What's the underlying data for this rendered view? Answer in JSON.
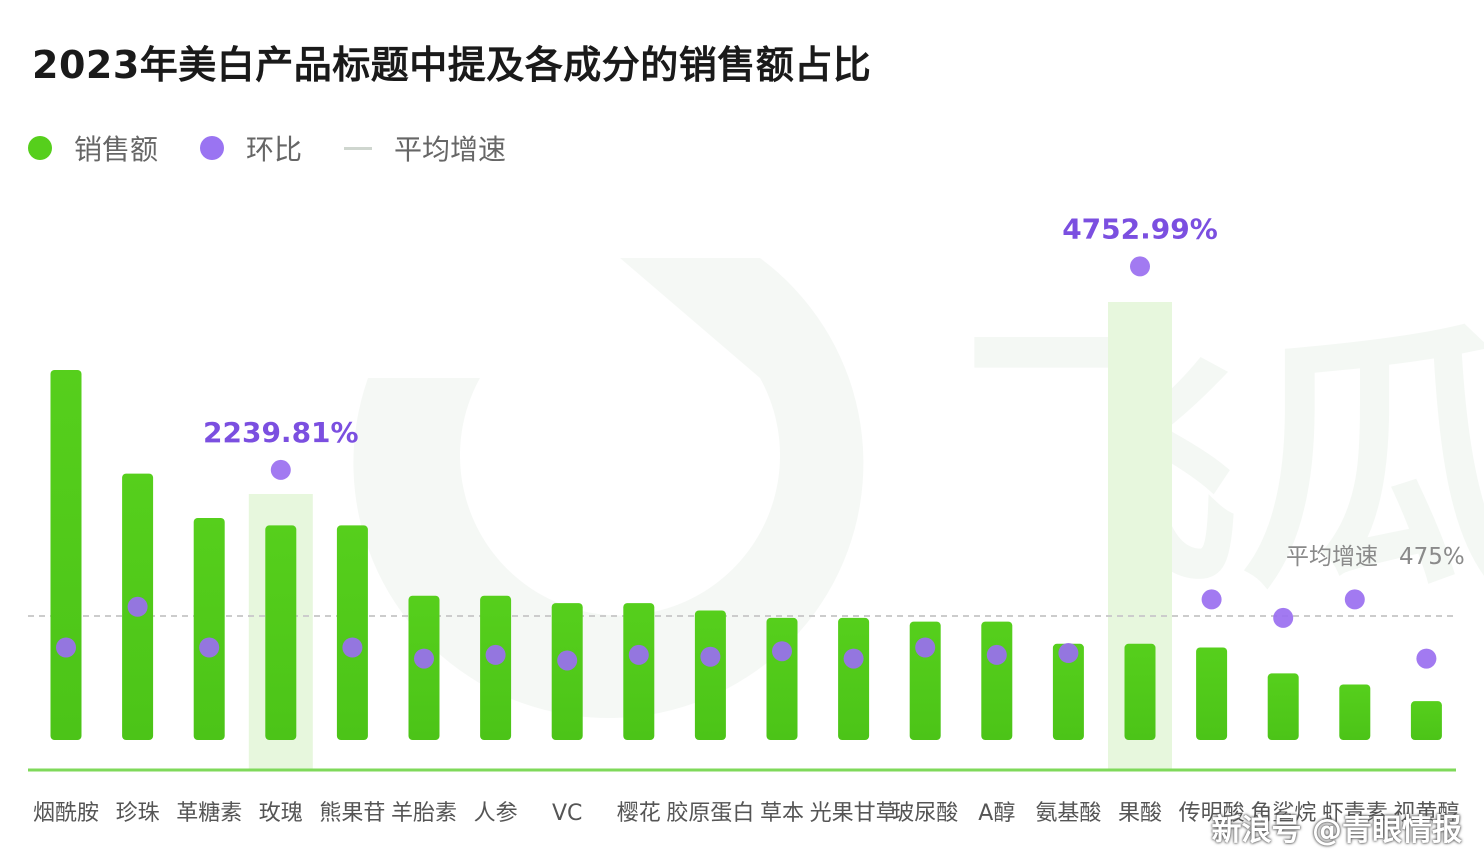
{
  "title": "2023年美白产品标题中提及各成分的销售额占比",
  "legend": {
    "sales": "销售额",
    "mom": "环比",
    "avg": "平均增速"
  },
  "colors": {
    "bar_top": "#56cf1c",
    "bar_bottom": "#4cc418",
    "highlight": "#e7f7dd",
    "dot": "#9a6ff0",
    "label": "#7b4fe0",
    "baseline": "#7fd95a",
    "avg_line": "#cccccc"
  },
  "watermark": {
    "source": "飞瓜",
    "footer": "新浪号 @青眼情报"
  },
  "chart_data": {
    "type": "bar",
    "categories": [
      "烟酰胺",
      "珍珠",
      "革糖素",
      "玫瑰",
      "熊果苷",
      "羊胎素",
      "人参",
      "VC",
      "樱花",
      "胶原蛋白",
      "草本",
      "光果甘草",
      "玻尿酸",
      "A醇",
      "氨基酸",
      "果酸",
      "传明酸",
      "角鲨烷",
      "虾青素",
      "视黄醇"
    ],
    "series": [
      {
        "name": "销售额",
        "kind": "bar",
        "values": [
          100,
          72,
          60,
          58,
          58,
          39,
          39,
          37,
          37,
          35,
          33,
          33,
          32,
          32,
          26,
          26,
          25,
          18,
          15,
          10.5
        ]
      },
      {
        "name": "环比",
        "kind": "dot",
        "values": [
          25,
          36,
          25,
          73,
          25,
          22,
          23,
          21.5,
          23,
          22.5,
          24,
          22,
          25,
          23,
          23.5,
          128,
          38,
          33,
          38,
          22
        ]
      }
    ],
    "highlight_categories": [
      "玫瑰",
      "果酸"
    ],
    "annotations": [
      {
        "category": "玫瑰",
        "text": "2239.81%"
      },
      {
        "category": "果酸",
        "text": "4752.99%"
      }
    ],
    "average_line": {
      "text": "平均增速",
      "value_label": "475%"
    }
  }
}
